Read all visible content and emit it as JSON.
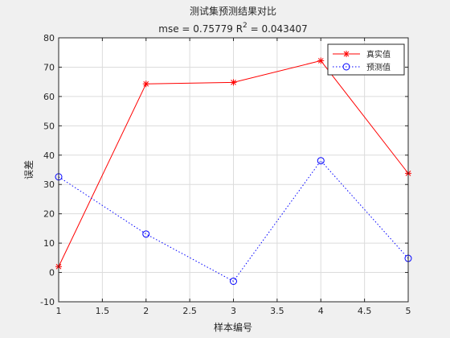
{
  "chart_data": {
    "type": "line",
    "title": "测试集预测结果对比",
    "subtitle_prefix": "mse = 0.75779 R",
    "subtitle_sup": "2",
    "subtitle_suffix": " = 0.043407",
    "xlabel": "样本编号",
    "ylabel": "误差",
    "x": [
      1,
      2,
      3,
      4,
      5
    ],
    "xlim": [
      1,
      5
    ],
    "ylim": [
      -10,
      80
    ],
    "xticks": [
      "1",
      "1.5",
      "2",
      "2.5",
      "3",
      "3.5",
      "4",
      "4.5",
      "5"
    ],
    "yticks": [
      "-10",
      "0",
      "10",
      "20",
      "30",
      "40",
      "50",
      "60",
      "70",
      "80"
    ],
    "grid": true,
    "legend_position": "top-right",
    "series": [
      {
        "name": "真实值",
        "values": [
          2,
          64.3,
          64.8,
          72.2,
          33.8
        ],
        "color": "#ff0000",
        "marker": "star",
        "line": "solid"
      },
      {
        "name": "预测值",
        "values": [
          32.6,
          13.1,
          -3,
          38.1,
          4.8
        ],
        "color": "#0000ff",
        "marker": "circle",
        "line": "dotted"
      }
    ]
  }
}
